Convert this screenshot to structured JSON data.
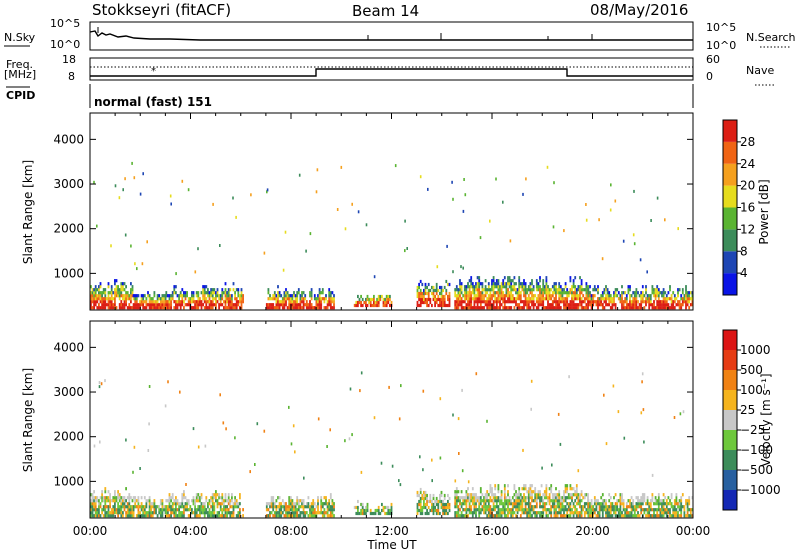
{
  "header": {
    "site": "Stokkseyri (fitACF)",
    "beam": "Beam 14",
    "date": "08/May/2016"
  },
  "top_panels": {
    "nsky": {
      "left_label": "N.Sky",
      "right_label": "N.Search",
      "left_ticks": [
        "10^5",
        "10^0"
      ],
      "right_ticks": [
        "10^5",
        "10^0"
      ]
    },
    "freq": {
      "left_label_1": "Freq.",
      "left_label_2": "[MHz]",
      "right_label": "Nave",
      "left_ticks": [
        "18",
        "8"
      ],
      "right_ticks": [
        "60",
        "0"
      ]
    },
    "cpid": {
      "label": "CPID",
      "text": "normal (fast) 151"
    }
  },
  "chart_data": [
    {
      "type": "heatmap",
      "title": "",
      "xlabel": "Time UT",
      "ylabel": "Slant Range [km]",
      "x_range_hours": [
        0,
        24
      ],
      "x_ticks": [
        "00:00",
        "04:00",
        "08:00",
        "12:00",
        "16:00",
        "20:00",
        "00:00"
      ],
      "y_range_km": [
        180,
        4590
      ],
      "y_ticks": [
        1000,
        2000,
        3000,
        4000
      ],
      "colorbar": {
        "label": "Power [dB]",
        "ticks": [
          "4",
          "8",
          "12",
          "16",
          "20",
          "24",
          "28"
        ],
        "colors": [
          "#0a14e6",
          "#1e46b4",
          "#3c8c5a",
          "#5ab432",
          "#e6dc1e",
          "#f5a01e",
          "#f06414",
          "#dc1e14"
        ]
      },
      "echo_regions": [
        {
          "t": [
            0.0,
            1.7
          ],
          "range_km": [
            200,
            900
          ]
        },
        {
          "t": [
            1.7,
            3.0
          ],
          "range_km": [
            200,
            700
          ]
        },
        {
          "t": [
            3.0,
            6.1
          ],
          "range_km": [
            200,
            820
          ]
        },
        {
          "t": [
            7.0,
            9.7
          ],
          "range_km": [
            200,
            750
          ]
        },
        {
          "t": [
            10.5,
            12.0
          ],
          "range_km": [
            250,
            600
          ]
        },
        {
          "t": [
            13.0,
            14.3
          ],
          "range_km": [
            250,
            900
          ]
        },
        {
          "t": [
            14.5,
            19.8
          ],
          "range_km": [
            200,
            1000
          ]
        },
        {
          "t": [
            19.8,
            24.0
          ],
          "range_km": [
            200,
            800
          ]
        }
      ]
    },
    {
      "type": "heatmap",
      "title": "",
      "xlabel": "Time UT",
      "ylabel": "Slant Range [km]",
      "x_range_hours": [
        0,
        24
      ],
      "x_ticks": [
        "00:00",
        "04:00",
        "08:00",
        "12:00",
        "16:00",
        "20:00",
        "00:00"
      ],
      "y_range_km": [
        180,
        4590
      ],
      "y_ticks": [
        1000,
        2000,
        3000,
        4000
      ],
      "colorbar": {
        "label": "Velocity [m s⁻¹]",
        "ticks": [
          "1000",
          "500",
          "100",
          "25",
          "−25",
          "−100",
          "−500",
          "−1000"
        ],
        "colors": [
          "#1428b4",
          "#2860a0",
          "#3c8c5a",
          "#6ec83c",
          "#c8c8c8",
          "#f5b41e",
          "#f08214",
          "#e63c14",
          "#dc1414"
        ]
      },
      "echo_regions": [
        {
          "t": [
            0.0,
            1.7
          ],
          "range_km": [
            200,
            900
          ]
        },
        {
          "t": [
            1.7,
            3.0
          ],
          "range_km": [
            200,
            700
          ]
        },
        {
          "t": [
            3.0,
            6.1
          ],
          "range_km": [
            200,
            820
          ]
        },
        {
          "t": [
            7.0,
            9.7
          ],
          "range_km": [
            200,
            750
          ]
        },
        {
          "t": [
            10.5,
            12.0
          ],
          "range_km": [
            250,
            600
          ]
        },
        {
          "t": [
            13.0,
            14.3
          ],
          "range_km": [
            250,
            900
          ]
        },
        {
          "t": [
            14.5,
            19.8
          ],
          "range_km": [
            200,
            1000
          ]
        },
        {
          "t": [
            19.8,
            24.0
          ],
          "range_km": [
            200,
            800
          ]
        }
      ]
    }
  ]
}
